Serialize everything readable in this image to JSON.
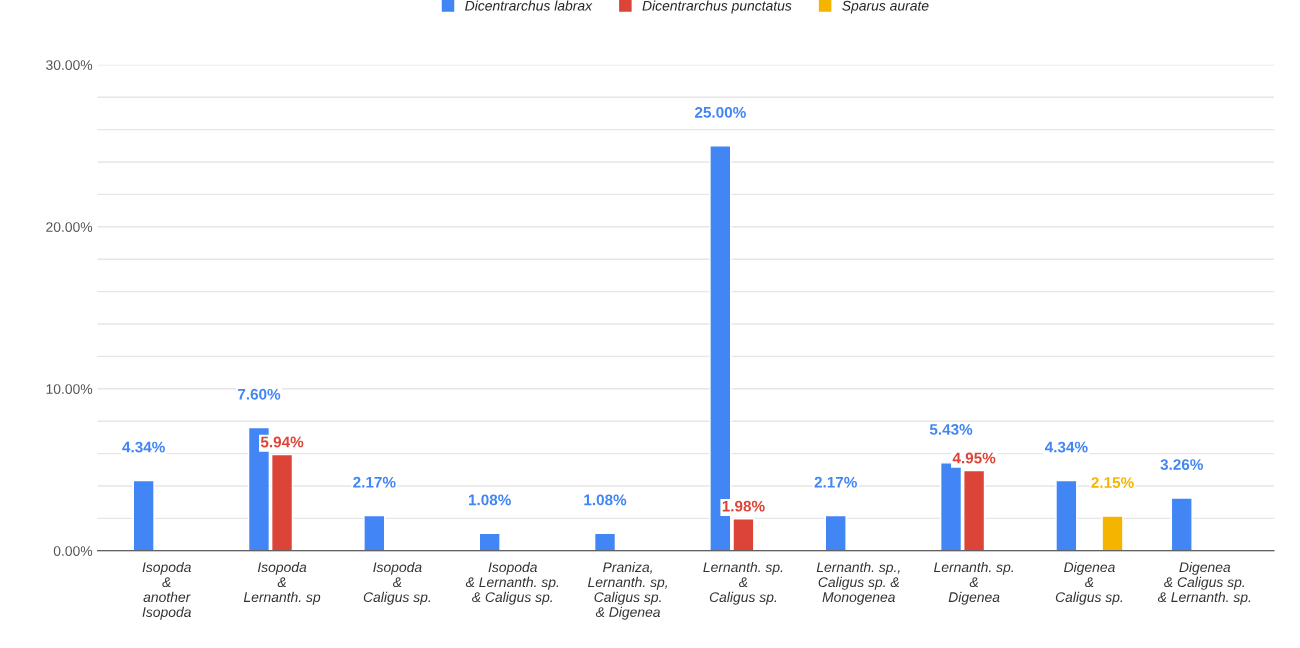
{
  "chart_data": {
    "type": "bar",
    "categories": [
      "Isopoda\n&\nanother\nIsopoda",
      "Isopoda\n&\nLernanth. sp",
      "Isopoda\n&\nCaligus sp.",
      "Isopoda\n& Lernanth. sp.\n& Caligus sp.",
      "Praniza,\nLernanth. sp,\nCaligus sp.\n& Digenea",
      "Lernanth. sp.\n&\nCaligus sp.",
      "Lernanth. sp.,\nCaligus sp. &\nMonogenea",
      "Lernanth. sp.\n&\nDigenea",
      "Digenea\n&\nCaligus sp.",
      "Digenea\n& Caligus sp.\n& Lernanth. sp."
    ],
    "series": [
      {
        "name": "Dicentrarchus labrax",
        "color": "#4285f4",
        "values": [
          4.34,
          7.6,
          2.17,
          1.08,
          1.08,
          25.0,
          2.17,
          5.43,
          4.34,
          3.26
        ],
        "value_labels": [
          "4.34%",
          "7.60%",
          "2.17%",
          "1.08%",
          "1.08%",
          "25.00%",
          "2.17%",
          "5.43%",
          "4.34%",
          "3.26%"
        ]
      },
      {
        "name": "Dicentrarchus punctatus",
        "color": "#db4437",
        "values": [
          null,
          5.94,
          null,
          null,
          null,
          1.98,
          null,
          4.95,
          null,
          null
        ],
        "value_labels": [
          null,
          "5.94%",
          null,
          null,
          null,
          "1.98%",
          null,
          "4.95%",
          null,
          null
        ]
      },
      {
        "name": "Sparus aurate",
        "color": "#f4b400",
        "values": [
          null,
          null,
          null,
          null,
          null,
          null,
          null,
          null,
          2.15,
          null
        ],
        "value_labels": [
          null,
          null,
          null,
          null,
          null,
          null,
          null,
          null,
          "2.15%",
          null
        ]
      }
    ],
    "ylim": [
      0,
      30
    ],
    "yticks": [
      {
        "value": 0,
        "label": "0.00%"
      },
      {
        "value": 2,
        "label": null
      },
      {
        "value": 4,
        "label": null
      },
      {
        "value": 6,
        "label": null
      },
      {
        "value": 8,
        "label": null
      },
      {
        "value": 10,
        "label": "10.00%"
      },
      {
        "value": 12,
        "label": null
      },
      {
        "value": 14,
        "label": null
      },
      {
        "value": 16,
        "label": null
      },
      {
        "value": 18,
        "label": null
      },
      {
        "value": 20,
        "label": "20.00%"
      },
      {
        "value": 22,
        "label": null
      },
      {
        "value": 24,
        "label": null
      },
      {
        "value": 26,
        "label": null
      },
      {
        "value": 28,
        "label": null
      },
      {
        "value": 30,
        "label": "30.00%"
      }
    ],
    "grid": "y",
    "legend": "top"
  }
}
